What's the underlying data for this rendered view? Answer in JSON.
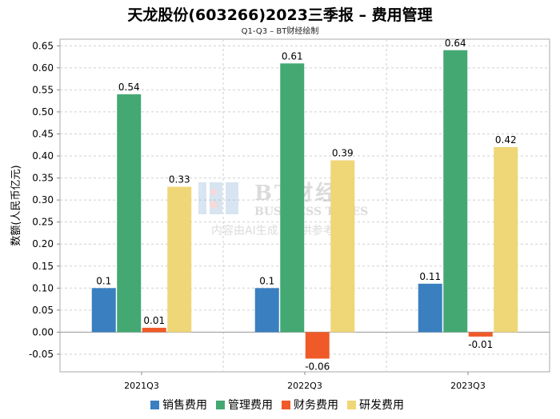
{
  "chart_data": {
    "type": "bar",
    "title": "天龙股份(603266)2023三季报 – 费用管理",
    "subtitle": "Q1-Q3 – BT财经绘制",
    "xlabel": "",
    "ylabel": "数额(人民币亿元)",
    "categories": [
      "2021Q3",
      "2022Q3",
      "2023Q3"
    ],
    "ylim": [
      -0.09,
      0.665
    ],
    "yticks": [
      -0.05,
      0.0,
      0.05,
      0.1,
      0.15,
      0.2,
      0.25,
      0.3,
      0.35,
      0.4,
      0.45,
      0.5,
      0.55,
      0.6,
      0.65
    ],
    "ytick_labels": [
      "-0.05",
      "0.00",
      "0.05",
      "0.10",
      "0.15",
      "0.20",
      "0.25",
      "0.30",
      "0.35",
      "0.40",
      "0.45",
      "0.50",
      "0.55",
      "0.60",
      "0.65"
    ],
    "grid": true,
    "legend_position": "bottom",
    "series": [
      {
        "name": "销售费用",
        "color": "#3a7fc0",
        "values": [
          0.1,
          0.1,
          0.11
        ],
        "labels": [
          "0.1",
          "0.1",
          "0.11"
        ]
      },
      {
        "name": "管理费用",
        "color": "#44a873",
        "values": [
          0.54,
          0.61,
          0.64
        ],
        "labels": [
          "0.54",
          "0.61",
          "0.64"
        ]
      },
      {
        "name": "财务费用",
        "color": "#f05a28",
        "values": [
          0.01,
          -0.06,
          -0.01
        ],
        "labels": [
          "0.01",
          "-0.06",
          "-0.01"
        ]
      },
      {
        "name": "研发费用",
        "color": "#efd677",
        "values": [
          0.33,
          0.39,
          0.42
        ],
        "labels": [
          "0.33",
          "0.39",
          "0.42"
        ]
      }
    ]
  },
  "watermark": {
    "brand": "BT财经",
    "brand_en": "BUSINESS TIMES",
    "disclaimer": "内容由AI生成，仅供参考"
  }
}
